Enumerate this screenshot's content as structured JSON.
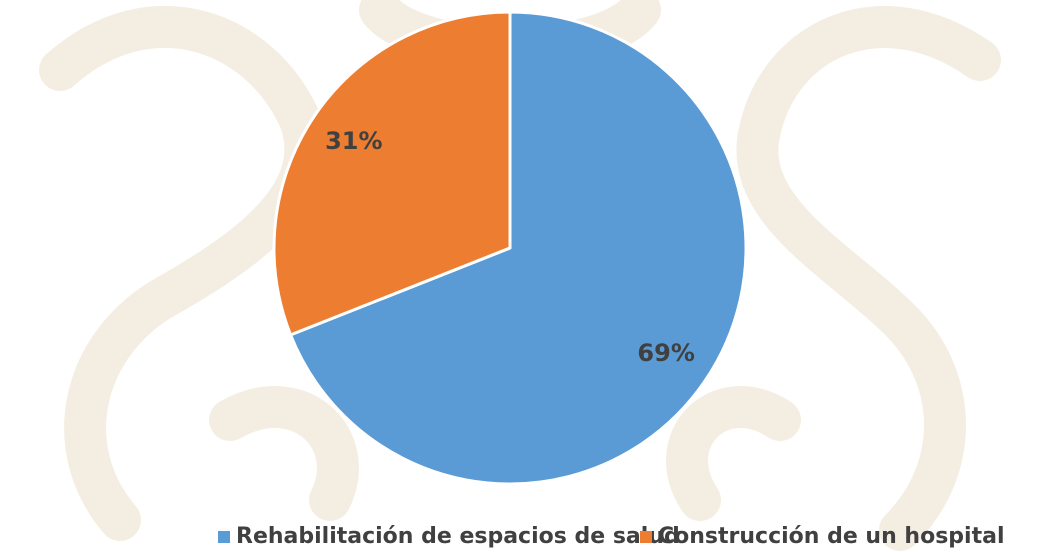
{
  "chart_data": {
    "type": "pie",
    "categories": [
      "Rehabilitación de espacios de salud",
      "Construcción de un hospital"
    ],
    "values": [
      69,
      31
    ],
    "value_labels": [
      "69%",
      "31%"
    ],
    "colors": [
      "#5b9bd5",
      "#ed7d31"
    ],
    "legend": "bottom"
  }
}
